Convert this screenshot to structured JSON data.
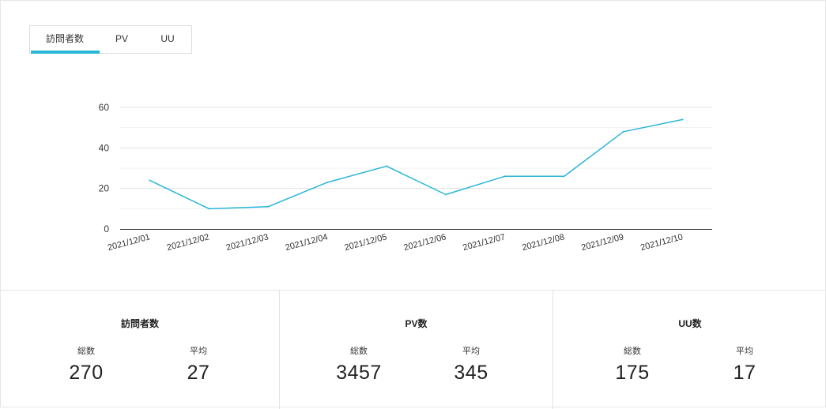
{
  "tabs": [
    {
      "label": "訪問者数",
      "active": true
    },
    {
      "label": "PV",
      "active": false
    },
    {
      "label": "UU",
      "active": false
    }
  ],
  "chart_data": {
    "type": "line",
    "title": "",
    "xlabel": "",
    "ylabel": "",
    "categories": [
      "2021/12/01",
      "2021/12/02",
      "2021/12/03",
      "2021/12/04",
      "2021/12/05",
      "2021/12/06",
      "2021/12/07",
      "2021/12/08",
      "2021/12/09",
      "2021/12/10"
    ],
    "series": [
      {
        "values": [
          24,
          10,
          11,
          23,
          31,
          17,
          26,
          26,
          48,
          54
        ],
        "color": "#29b6d8"
      }
    ],
    "ylim": [
      0,
      60
    ],
    "yticks": [
      0,
      20,
      40,
      60
    ],
    "grid": true,
    "legend": "none"
  },
  "stats": [
    {
      "title": "訪問者数",
      "total_label": "総数",
      "total": "270",
      "avg_label": "平均",
      "avg": "27"
    },
    {
      "title": "PV数",
      "total_label": "総数",
      "total": "3457",
      "avg_label": "平均",
      "avg": "345"
    },
    {
      "title": "UU数",
      "total_label": "総数",
      "total": "175",
      "avg_label": "平均",
      "avg": "17"
    }
  ]
}
